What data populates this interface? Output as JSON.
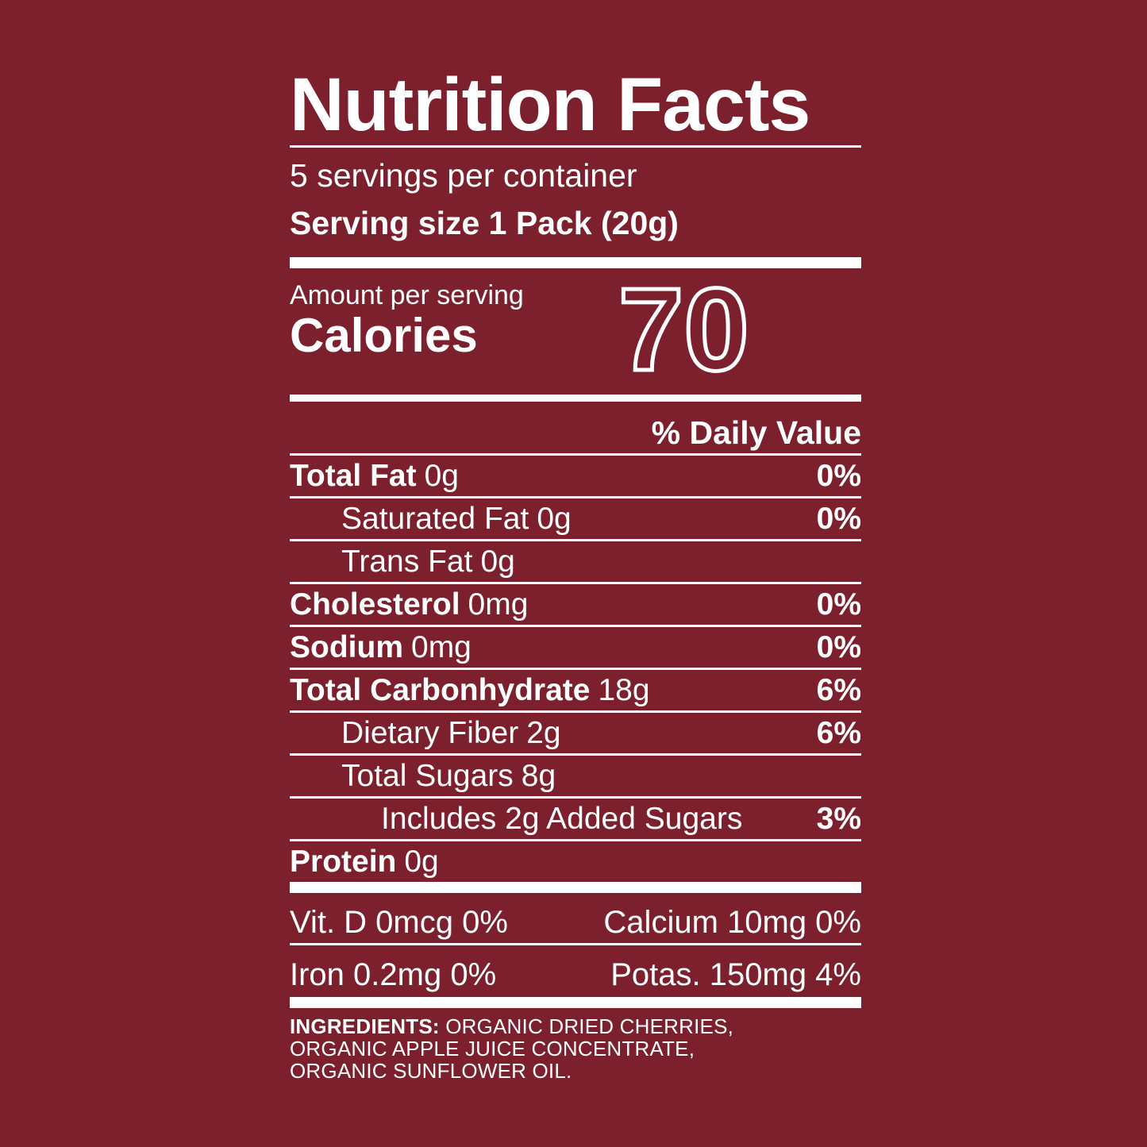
{
  "colors": {
    "background": "#7D202E",
    "foreground": "#FFFFFF"
  },
  "label": {
    "title": "Nutrition Facts",
    "servings_per_container": "5 servings per container",
    "serving_size_line": "Serving size 1 Pack (20g)",
    "amount_per_serving": "Amount per serving",
    "calories_label": "Calories",
    "calories_value": "70",
    "daily_value_header": "% Daily Value",
    "rows": [
      {
        "name": "Total Fat",
        "amount": "0g",
        "dv": "0%",
        "indent": 0,
        "bold": true
      },
      {
        "name": "Saturated Fat",
        "amount": "0g",
        "dv": "0%",
        "indent": 1,
        "bold": false
      },
      {
        "name": "Trans Fat",
        "amount": "0g",
        "dv": "",
        "indent": 1,
        "bold": false
      },
      {
        "name": "Cholesterol",
        "amount": "0mg",
        "dv": "0%",
        "indent": 0,
        "bold": true
      },
      {
        "name": "Sodium",
        "amount": "0mg",
        "dv": "0%",
        "indent": 0,
        "bold": true
      },
      {
        "name": "Total Carbonhydrate",
        "amount": "18g",
        "dv": "6%",
        "indent": 0,
        "bold": true
      },
      {
        "name": "Dietary Fiber",
        "amount": "2g",
        "dv": "6%",
        "indent": 1,
        "bold": false
      },
      {
        "name": "Total Sugars",
        "amount": "8g",
        "dv": "",
        "indent": 1,
        "bold": false
      },
      {
        "name": "Includes 2g Added Sugars",
        "amount": "",
        "dv": "3%",
        "indent": 2,
        "bold": false
      },
      {
        "name": "Protein",
        "amount": "0g",
        "dv": "",
        "indent": 0,
        "bold": true
      }
    ],
    "micronutrients": {
      "row1_left": "Vit. D 0mcg 0%",
      "row1_right": "Calcium 10mg 0%",
      "row2_left": "Iron 0.2mg 0%",
      "row2_right": "Potas. 150mg 4%"
    },
    "ingredients_label": "INGREDIENTS:",
    "ingredients_text": "ORGANIC DRIED CHERRIES, ORGANIC APPLE JUICE CONCENTRATE, ORGANIC SUNFLOWER OIL."
  }
}
